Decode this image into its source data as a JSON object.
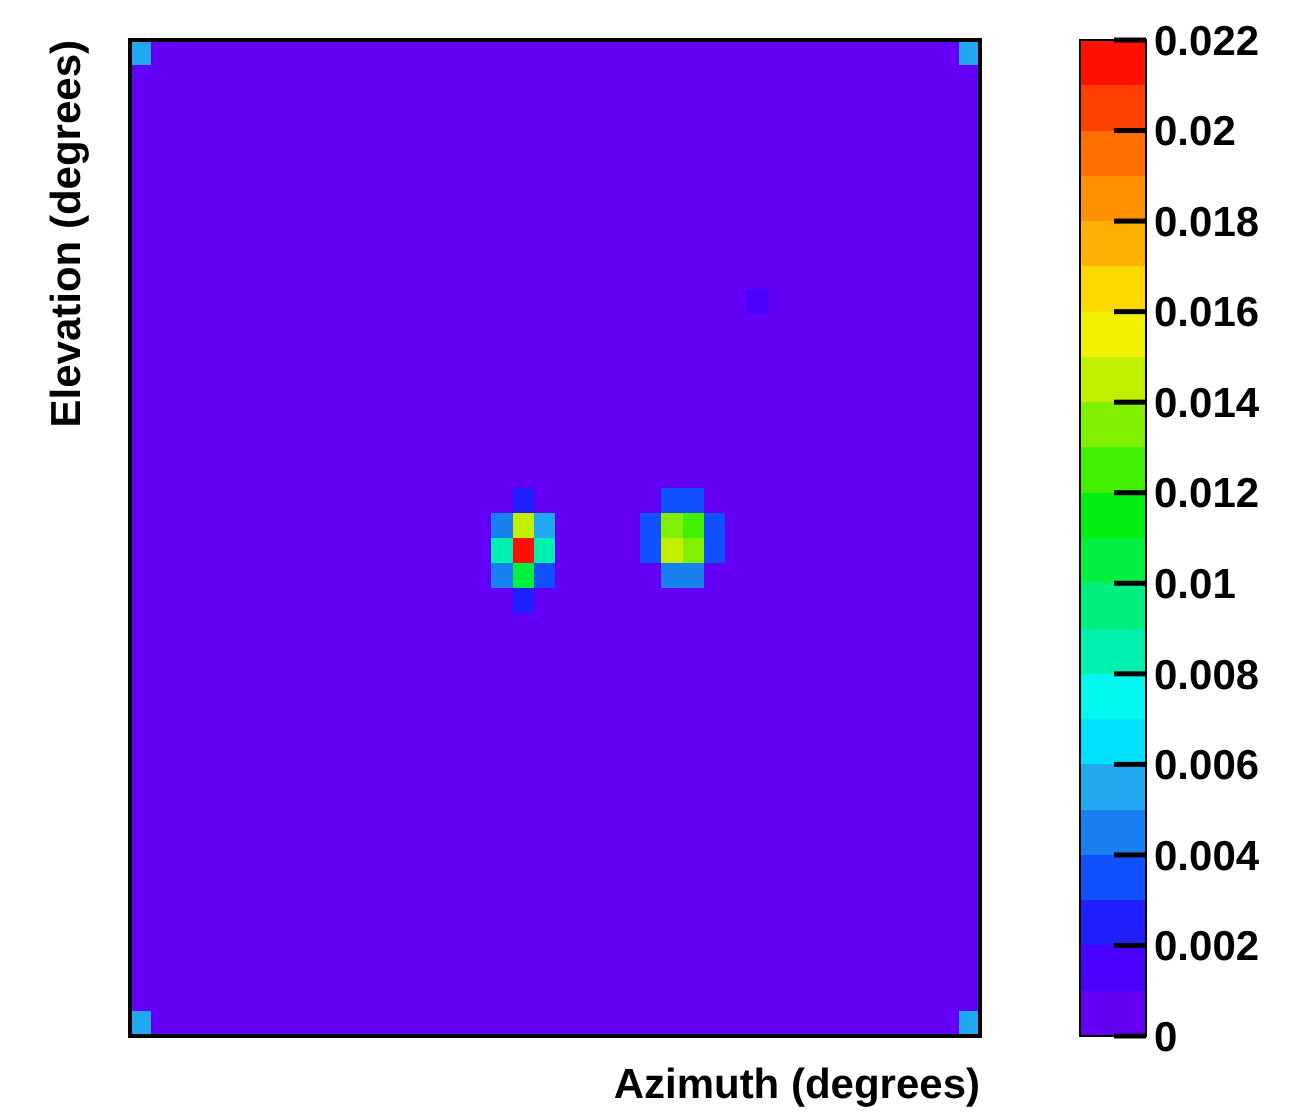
{
  "chart_data": {
    "type": "heatmap",
    "xlabel": "Azimuth (degrees)",
    "ylabel": "Elevation (degrees)",
    "clim": [
      0,
      0.022
    ],
    "cticks": [
      0,
      0.002,
      0.004,
      0.006,
      0.008,
      0.01,
      0.012,
      0.014,
      0.016,
      0.018,
      0.02,
      0.022
    ],
    "categories": [
      null,
      null,
      null,
      null,
      null,
      null,
      null,
      null,
      null,
      null,
      null,
      null,
      null,
      null,
      null,
      null,
      null,
      null,
      null,
      null,
      null,
      null,
      null,
      null,
      null,
      null,
      null,
      null,
      null,
      null,
      null,
      null,
      null,
      null,
      null,
      null,
      null,
      null,
      null,
      null
    ],
    "y_categories": [
      null,
      null,
      null,
      null,
      null,
      null,
      null,
      null,
      null,
      null,
      null,
      null,
      null,
      null,
      null,
      null,
      null,
      null,
      null,
      null,
      null,
      null,
      null,
      null,
      null,
      null,
      null,
      null,
      null,
      null,
      null,
      null,
      null,
      null,
      null,
      null,
      null,
      null,
      null,
      null
    ],
    "cells": [
      [
        0.005,
        0,
        0,
        0,
        0,
        0,
        0,
        0,
        0,
        0,
        0,
        0,
        0,
        0,
        0,
        0,
        0,
        0,
        0,
        0,
        0,
        0,
        0,
        0,
        0,
        0,
        0,
        0,
        0,
        0,
        0,
        0,
        0,
        0,
        0,
        0,
        0,
        0,
        0,
        0.005
      ],
      [
        0,
        0,
        0,
        0,
        0,
        0,
        0,
        0,
        0,
        0,
        0,
        0,
        0,
        0,
        0,
        0,
        0,
        0,
        0,
        0,
        0,
        0,
        0,
        0,
        0,
        0,
        0,
        0,
        0,
        0,
        0,
        0,
        0,
        0,
        0,
        0,
        0,
        0,
        0,
        0
      ],
      [
        0,
        0,
        0,
        0,
        0,
        0,
        0,
        0,
        0,
        0,
        0,
        0,
        0,
        0,
        0,
        0,
        0,
        0,
        0,
        0,
        0,
        0,
        0,
        0,
        0,
        0,
        0,
        0,
        0,
        0,
        0,
        0,
        0,
        0,
        0,
        0,
        0,
        0,
        0,
        0
      ],
      [
        0,
        0,
        0,
        0,
        0,
        0,
        0,
        0,
        0,
        0,
        0,
        0,
        0,
        0,
        0,
        0,
        0,
        0,
        0,
        0,
        0,
        0,
        0,
        0,
        0,
        0,
        0,
        0,
        0,
        0,
        0,
        0,
        0,
        0,
        0,
        0,
        0,
        0,
        0,
        0
      ],
      [
        0,
        0,
        0,
        0,
        0,
        0,
        0,
        0,
        0,
        0,
        0,
        0,
        0,
        0,
        0,
        0,
        0,
        0,
        0,
        0,
        0,
        0,
        0,
        0,
        0,
        0,
        0,
        0,
        0,
        0,
        0,
        0,
        0,
        0,
        0,
        0,
        0,
        0,
        0,
        0
      ],
      [
        0,
        0,
        0,
        0,
        0,
        0,
        0,
        0,
        0,
        0,
        0,
        0,
        0,
        0,
        0,
        0,
        0,
        0,
        0,
        0,
        0,
        0,
        0,
        0,
        0,
        0,
        0,
        0,
        0,
        0,
        0,
        0,
        0,
        0,
        0,
        0,
        0,
        0,
        0,
        0
      ],
      [
        0,
        0,
        0,
        0,
        0,
        0,
        0,
        0,
        0,
        0,
        0,
        0,
        0,
        0,
        0,
        0,
        0,
        0,
        0,
        0,
        0,
        0,
        0,
        0,
        0,
        0,
        0,
        0,
        0,
        0,
        0,
        0,
        0,
        0,
        0,
        0,
        0,
        0,
        0,
        0
      ],
      [
        0,
        0,
        0,
        0,
        0,
        0,
        0,
        0,
        0,
        0,
        0,
        0,
        0,
        0,
        0,
        0,
        0,
        0,
        0,
        0,
        0,
        0,
        0,
        0,
        0,
        0,
        0,
        0,
        0,
        0,
        0,
        0,
        0,
        0,
        0,
        0,
        0,
        0,
        0,
        0
      ],
      [
        0,
        0,
        0,
        0,
        0,
        0,
        0,
        0,
        0,
        0,
        0,
        0,
        0,
        0,
        0,
        0,
        0,
        0,
        0,
        0,
        0,
        0,
        0,
        0,
        0,
        0,
        0,
        0,
        0,
        0,
        0,
        0,
        0,
        0,
        0,
        0,
        0,
        0,
        0,
        0
      ],
      [
        0,
        0,
        0,
        0,
        0,
        0,
        0,
        0,
        0,
        0,
        0,
        0,
        0,
        0,
        0,
        0,
        0,
        0,
        0,
        0,
        0,
        0,
        0,
        0,
        0,
        0,
        0,
        0,
        0,
        0,
        0,
        0,
        0,
        0,
        0,
        0,
        0,
        0,
        0,
        0
      ],
      [
        0,
        0,
        0,
        0,
        0,
        0,
        0,
        0,
        0,
        0,
        0,
        0,
        0,
        0,
        0,
        0,
        0,
        0,
        0,
        0,
        0,
        0,
        0,
        0,
        0,
        0,
        0,
        0,
        0,
        0.001,
        0,
        0,
        0,
        0,
        0,
        0,
        0,
        0,
        0,
        0
      ],
      [
        0,
        0,
        0,
        0,
        0,
        0,
        0,
        0,
        0,
        0,
        0,
        0,
        0,
        0,
        0,
        0,
        0,
        0,
        0,
        0,
        0,
        0,
        0,
        0,
        0,
        0,
        0,
        0,
        0,
        0,
        0,
        0,
        0,
        0,
        0,
        0,
        0,
        0,
        0,
        0
      ],
      [
        0,
        0,
        0,
        0,
        0,
        0,
        0,
        0,
        0,
        0,
        0,
        0,
        0,
        0,
        0,
        0,
        0,
        0,
        0,
        0,
        0,
        0,
        0,
        0,
        0,
        0,
        0,
        0,
        0,
        0,
        0,
        0,
        0,
        0,
        0,
        0,
        0,
        0,
        0,
        0
      ],
      [
        0,
        0,
        0,
        0,
        0,
        0,
        0,
        0,
        0,
        0,
        0,
        0,
        0,
        0,
        0,
        0,
        0,
        0,
        0,
        0,
        0,
        0,
        0,
        0,
        0,
        0,
        0,
        0,
        0,
        0,
        0,
        0,
        0,
        0,
        0,
        0,
        0,
        0,
        0,
        0
      ],
      [
        0,
        0,
        0,
        0,
        0,
        0,
        0,
        0,
        0,
        0,
        0,
        0,
        0,
        0,
        0,
        0,
        0,
        0,
        0,
        0,
        0,
        0,
        0,
        0,
        0,
        0,
        0,
        0,
        0,
        0,
        0,
        0,
        0,
        0,
        0,
        0,
        0,
        0,
        0,
        0
      ],
      [
        0,
        0,
        0,
        0,
        0,
        0,
        0,
        0,
        0,
        0,
        0,
        0,
        0,
        0,
        0,
        0,
        0,
        0,
        0,
        0,
        0,
        0,
        0,
        0,
        0,
        0,
        0,
        0,
        0,
        0,
        0,
        0,
        0,
        0,
        0,
        0,
        0,
        0,
        0,
        0
      ],
      [
        0,
        0,
        0,
        0,
        0,
        0,
        0,
        0,
        0,
        0,
        0,
        0,
        0,
        0,
        0,
        0,
        0,
        0,
        0,
        0,
        0,
        0,
        0,
        0,
        0,
        0,
        0,
        0,
        0,
        0,
        0,
        0,
        0,
        0,
        0,
        0,
        0,
        0,
        0,
        0
      ],
      [
        0,
        0,
        0,
        0,
        0,
        0,
        0,
        0,
        0,
        0,
        0,
        0,
        0,
        0,
        0,
        0,
        0,
        0,
        0,
        0,
        0,
        0,
        0,
        0,
        0,
        0,
        0,
        0,
        0,
        0,
        0,
        0,
        0,
        0,
        0,
        0,
        0,
        0,
        0,
        0
      ],
      [
        0,
        0,
        0,
        0,
        0,
        0,
        0,
        0,
        0,
        0,
        0,
        0,
        0,
        0,
        0,
        0,
        0,
        0,
        0.002,
        0,
        0,
        0,
        0,
        0,
        0,
        0.003,
        0.003,
        0,
        0,
        0,
        0,
        0,
        0,
        0,
        0,
        0,
        0,
        0,
        0,
        0
      ],
      [
        0,
        0,
        0,
        0,
        0,
        0,
        0,
        0,
        0,
        0,
        0,
        0,
        0,
        0,
        0,
        0,
        0,
        0.004,
        0.014,
        0.005,
        0,
        0,
        0,
        0,
        0.003,
        0.013,
        0.012,
        0.003,
        0,
        0,
        0,
        0,
        0,
        0,
        0,
        0,
        0,
        0,
        0,
        0
      ],
      [
        0,
        0,
        0,
        0,
        0,
        0,
        0,
        0,
        0,
        0,
        0,
        0,
        0,
        0,
        0,
        0,
        0,
        0.008,
        0.021,
        0.008,
        0,
        0,
        0,
        0,
        0.003,
        0.014,
        0.013,
        0.003,
        0,
        0,
        0,
        0,
        0,
        0,
        0,
        0,
        0,
        0,
        0,
        0
      ],
      [
        0,
        0,
        0,
        0,
        0,
        0,
        0,
        0,
        0,
        0,
        0,
        0,
        0,
        0,
        0,
        0,
        0,
        0.004,
        0.01,
        0.003,
        0,
        0,
        0,
        0,
        0,
        0.004,
        0.004,
        0,
        0,
        0,
        0,
        0,
        0,
        0,
        0,
        0,
        0,
        0,
        0,
        0
      ],
      [
        0,
        0,
        0,
        0,
        0,
        0,
        0,
        0,
        0,
        0,
        0,
        0,
        0,
        0,
        0,
        0,
        0,
        0,
        0.002,
        0,
        0,
        0,
        0,
        0,
        0,
        0,
        0,
        0,
        0,
        0,
        0,
        0,
        0,
        0,
        0,
        0,
        0,
        0,
        0,
        0
      ],
      [
        0,
        0,
        0,
        0,
        0,
        0,
        0,
        0,
        0,
        0,
        0,
        0,
        0,
        0,
        0,
        0,
        0,
        0,
        0,
        0,
        0,
        0,
        0,
        0,
        0,
        0,
        0,
        0,
        0,
        0,
        0,
        0,
        0,
        0,
        0,
        0,
        0,
        0,
        0,
        0
      ],
      [
        0,
        0,
        0,
        0,
        0,
        0,
        0,
        0,
        0,
        0,
        0,
        0,
        0,
        0,
        0,
        0,
        0,
        0,
        0,
        0,
        0,
        0,
        0,
        0,
        0,
        0,
        0,
        0,
        0,
        0,
        0,
        0,
        0,
        0,
        0,
        0,
        0,
        0,
        0,
        0
      ],
      [
        0,
        0,
        0,
        0,
        0,
        0,
        0,
        0,
        0,
        0,
        0,
        0,
        0,
        0,
        0,
        0,
        0,
        0,
        0,
        0,
        0,
        0,
        0,
        0,
        0,
        0,
        0,
        0,
        0,
        0,
        0,
        0,
        0,
        0,
        0,
        0,
        0,
        0,
        0,
        0
      ],
      [
        0,
        0,
        0,
        0,
        0,
        0,
        0,
        0,
        0,
        0,
        0,
        0,
        0,
        0,
        0,
        0,
        0,
        0,
        0,
        0,
        0,
        0,
        0,
        0,
        0,
        0,
        0,
        0,
        0,
        0,
        0,
        0,
        0,
        0,
        0,
        0,
        0,
        0,
        0,
        0
      ],
      [
        0,
        0,
        0,
        0,
        0,
        0,
        0,
        0,
        0,
        0,
        0,
        0,
        0,
        0,
        0,
        0,
        0,
        0,
        0,
        0,
        0,
        0,
        0,
        0,
        0,
        0,
        0,
        0,
        0,
        0,
        0,
        0,
        0,
        0,
        0,
        0,
        0,
        0,
        0,
        0
      ],
      [
        0,
        0,
        0,
        0,
        0,
        0,
        0,
        0,
        0,
        0,
        0,
        0,
        0,
        0,
        0,
        0,
        0,
        0,
        0,
        0,
        0,
        0,
        0,
        0,
        0,
        0,
        0,
        0,
        0,
        0,
        0,
        0,
        0,
        0,
        0,
        0,
        0,
        0,
        0,
        0
      ],
      [
        0,
        0,
        0,
        0,
        0,
        0,
        0,
        0,
        0,
        0,
        0,
        0,
        0,
        0,
        0,
        0,
        0,
        0,
        0,
        0,
        0,
        0,
        0,
        0,
        0,
        0,
        0,
        0,
        0,
        0,
        0,
        0,
        0,
        0,
        0,
        0,
        0,
        0,
        0,
        0
      ],
      [
        0,
        0,
        0,
        0,
        0,
        0,
        0,
        0,
        0,
        0,
        0,
        0,
        0,
        0,
        0,
        0,
        0,
        0,
        0,
        0,
        0,
        0,
        0,
        0,
        0,
        0,
        0,
        0,
        0,
        0,
        0,
        0,
        0,
        0,
        0,
        0,
        0,
        0,
        0,
        0
      ],
      [
        0,
        0,
        0,
        0,
        0,
        0,
        0,
        0,
        0,
        0,
        0,
        0,
        0,
        0,
        0,
        0,
        0,
        0,
        0,
        0,
        0,
        0,
        0,
        0,
        0,
        0,
        0,
        0,
        0,
        0,
        0,
        0,
        0,
        0,
        0,
        0,
        0,
        0,
        0,
        0
      ],
      [
        0,
        0,
        0,
        0,
        0,
        0,
        0,
        0,
        0,
        0,
        0,
        0,
        0,
        0,
        0,
        0,
        0,
        0,
        0,
        0,
        0,
        0,
        0,
        0,
        0,
        0,
        0,
        0,
        0,
        0,
        0,
        0,
        0,
        0,
        0,
        0,
        0,
        0,
        0,
        0
      ],
      [
        0,
        0,
        0,
        0,
        0,
        0,
        0,
        0,
        0,
        0,
        0,
        0,
        0,
        0,
        0,
        0,
        0,
        0,
        0,
        0,
        0,
        0,
        0,
        0,
        0,
        0,
        0,
        0,
        0,
        0,
        0,
        0,
        0,
        0,
        0,
        0,
        0,
        0,
        0,
        0
      ],
      [
        0,
        0,
        0,
        0,
        0,
        0,
        0,
        0,
        0,
        0,
        0,
        0,
        0,
        0,
        0,
        0,
        0,
        0,
        0,
        0,
        0,
        0,
        0,
        0,
        0,
        0,
        0,
        0,
        0,
        0,
        0,
        0,
        0,
        0,
        0,
        0,
        0,
        0,
        0,
        0
      ],
      [
        0,
        0,
        0,
        0,
        0,
        0,
        0,
        0,
        0,
        0,
        0,
        0,
        0,
        0,
        0,
        0,
        0,
        0,
        0,
        0,
        0,
        0,
        0,
        0,
        0,
        0,
        0,
        0,
        0,
        0,
        0,
        0,
        0,
        0,
        0,
        0,
        0,
        0,
        0,
        0
      ],
      [
        0,
        0,
        0,
        0,
        0,
        0,
        0,
        0,
        0,
        0,
        0,
        0,
        0,
        0,
        0,
        0,
        0,
        0,
        0,
        0,
        0,
        0,
        0,
        0,
        0,
        0,
        0,
        0,
        0,
        0,
        0,
        0,
        0,
        0,
        0,
        0,
        0,
        0,
        0,
        0
      ],
      [
        0,
        0,
        0,
        0,
        0,
        0,
        0,
        0,
        0,
        0,
        0,
        0,
        0,
        0,
        0,
        0,
        0,
        0,
        0,
        0,
        0,
        0,
        0,
        0,
        0,
        0,
        0,
        0,
        0,
        0,
        0,
        0,
        0,
        0,
        0,
        0,
        0,
        0,
        0,
        0
      ],
      [
        0,
        0,
        0,
        0,
        0,
        0,
        0,
        0,
        0,
        0,
        0,
        0,
        0,
        0,
        0,
        0,
        0,
        0,
        0,
        0,
        0,
        0,
        0,
        0,
        0,
        0,
        0,
        0,
        0,
        0,
        0,
        0,
        0,
        0,
        0,
        0,
        0,
        0,
        0,
        0
      ],
      [
        0.005,
        0,
        0,
        0,
        0,
        0,
        0,
        0,
        0,
        0,
        0,
        0,
        0,
        0,
        0,
        0,
        0,
        0,
        0,
        0,
        0,
        0,
        0,
        0,
        0,
        0,
        0,
        0,
        0,
        0,
        0,
        0,
        0,
        0,
        0,
        0,
        0,
        0,
        0,
        0.005
      ]
    ]
  }
}
